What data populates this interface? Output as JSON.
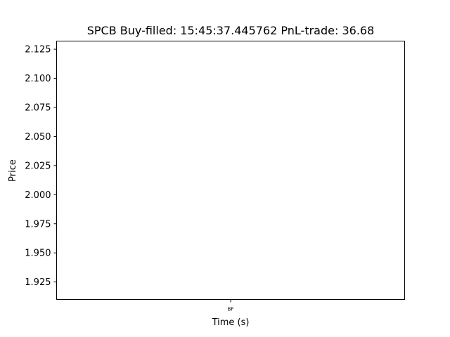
{
  "chart_data": {
    "type": "line",
    "title": "SPCB  Buy-filled:  15:45:37.445762  PnL-trade:  36.68",
    "xlabel": "Time (s)",
    "ylabel": "Price",
    "ylim": [
      1.91,
      2.132
    ],
    "yticks": [
      1.925,
      1.95,
      1.975,
      2.0,
      2.025,
      2.05,
      2.075,
      2.1,
      2.125
    ],
    "ytick_labels": [
      "1.925",
      "1.950",
      "1.975",
      "2.000",
      "2.025",
      "2.050",
      "2.075",
      "2.100",
      "2.125"
    ],
    "xticks": [
      "BF"
    ],
    "series": [],
    "grid": false,
    "colors": {
      "axis": "#000000",
      "background": "#ffffff"
    }
  }
}
